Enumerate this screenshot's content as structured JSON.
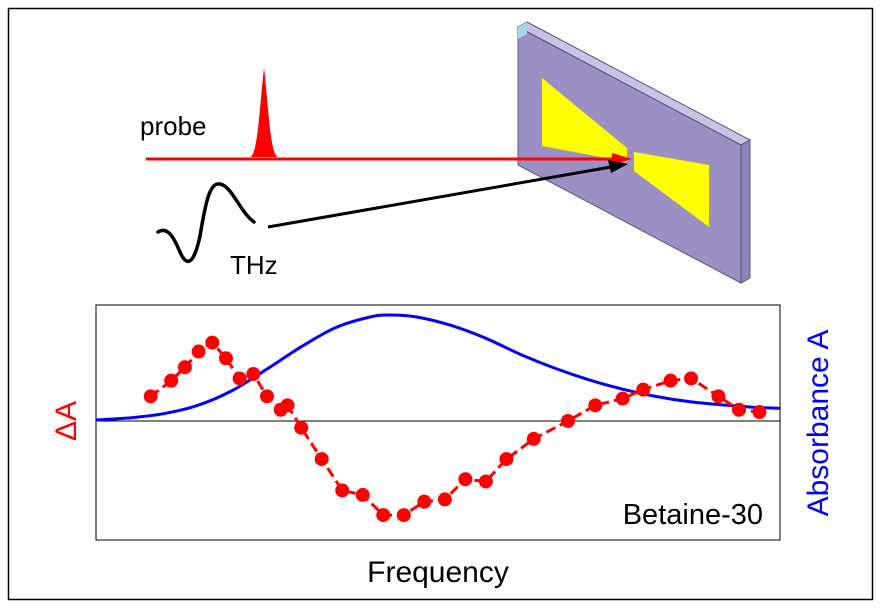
{
  "labels": {
    "probe": "probe",
    "thz": "THz",
    "sample": "Betaine-30",
    "left_axis": "ΔA",
    "right_axis": "Absorbance A",
    "x_axis": "Frequency"
  },
  "colors": {
    "probe": "#ff0000",
    "thz_arrow": "#000000",
    "absorbance": "#0000ff",
    "delta_a": "#ff0000",
    "substrate": "#9b8fc4",
    "antenna": "#ffff00"
  },
  "chart_data": {
    "type": "line",
    "title": "",
    "xlabel": "Frequency",
    "ylabel": "ΔA",
    "y2label": "Absorbance A",
    "tick_labels": "none",
    "zero_line": true,
    "series": [
      {
        "name": "ΔA",
        "style": "red dots with dashed line",
        "axis": "left",
        "points": [
          [
            0.08,
            0.22
          ],
          [
            0.11,
            0.36
          ],
          [
            0.13,
            0.48
          ],
          [
            0.15,
            0.62
          ],
          [
            0.17,
            0.7
          ],
          [
            0.19,
            0.56
          ],
          [
            0.21,
            0.38
          ],
          [
            0.23,
            0.42
          ],
          [
            0.25,
            0.22
          ],
          [
            0.27,
            0.1
          ],
          [
            0.28,
            0.14
          ],
          [
            0.3,
            -0.06
          ],
          [
            0.33,
            -0.34
          ],
          [
            0.36,
            -0.62
          ],
          [
            0.39,
            -0.66
          ],
          [
            0.42,
            -0.84
          ],
          [
            0.45,
            -0.84
          ],
          [
            0.48,
            -0.72
          ],
          [
            0.51,
            -0.7
          ],
          [
            0.54,
            -0.52
          ],
          [
            0.57,
            -0.54
          ],
          [
            0.6,
            -0.34
          ],
          [
            0.64,
            -0.16
          ],
          [
            0.69,
            0.0
          ],
          [
            0.73,
            0.14
          ],
          [
            0.77,
            0.2
          ],
          [
            0.8,
            0.28
          ],
          [
            0.84,
            0.36
          ],
          [
            0.87,
            0.38
          ],
          [
            0.91,
            0.22
          ],
          [
            0.94,
            0.1
          ],
          [
            0.97,
            0.08
          ]
        ]
      },
      {
        "name": "Absorbance A",
        "style": "blue solid line",
        "axis": "right",
        "shape": "single smooth absorption band, peak near 0.43 of the frequency range",
        "points": [
          [
            0.0,
            0.01
          ],
          [
            0.05,
            0.03
          ],
          [
            0.1,
            0.07
          ],
          [
            0.15,
            0.15
          ],
          [
            0.2,
            0.29
          ],
          [
            0.25,
            0.49
          ],
          [
            0.3,
            0.7
          ],
          [
            0.35,
            0.88
          ],
          [
            0.4,
            0.98
          ],
          [
            0.43,
            1.0
          ],
          [
            0.47,
            0.98
          ],
          [
            0.52,
            0.9
          ],
          [
            0.57,
            0.78
          ],
          [
            0.62,
            0.63
          ],
          [
            0.67,
            0.5
          ],
          [
            0.72,
            0.39
          ],
          [
            0.77,
            0.3
          ],
          [
            0.82,
            0.23
          ],
          [
            0.87,
            0.18
          ],
          [
            0.92,
            0.15
          ],
          [
            0.96,
            0.13
          ],
          [
            1.0,
            0.12
          ]
        ]
      }
    ]
  }
}
